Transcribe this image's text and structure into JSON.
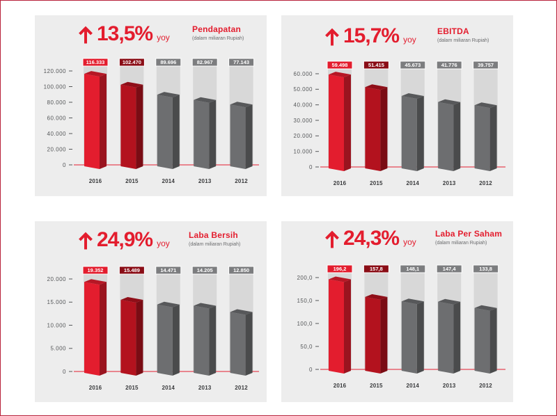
{
  "colors": {
    "accent": "#e31d2e",
    "frame": "#b8213a",
    "panel_background": "#ededed",
    "column_background": "#d8d8d8",
    "bar_colors": [
      "#e31d2e",
      "#b3121e",
      "#6d6e70",
      "#6d6e70",
      "#6d6e70"
    ],
    "label_colors": [
      "#e31d2e",
      "#8a0d16",
      "#7c7d7f",
      "#7c7d7f",
      "#7c7d7f"
    ]
  },
  "growth_icon": "up-arrow-icon",
  "chart_data": [
    {
      "type": "bar",
      "growth": "13,5%",
      "growth_period": "yoy",
      "title": "Pendapatan",
      "subtitle": "(dalam miliaran Rupiah)",
      "categories": [
        "2016",
        "2015",
        "2014",
        "2013",
        "2012"
      ],
      "values": [
        116333,
        102470,
        89696,
        82967,
        77143
      ],
      "data_labels": [
        "116.333",
        "102.470",
        "89.696",
        "82.967",
        "77.143"
      ],
      "ylim": [
        0,
        120000
      ],
      "yticks": [
        0,
        20000,
        40000,
        60000,
        80000,
        100000,
        120000
      ],
      "ytick_labels": [
        "0",
        "20.000",
        "40.000",
        "60.000",
        "80.000",
        "100.000",
        "120.000"
      ],
      "grid": false
    },
    {
      "type": "bar",
      "growth": "15,7%",
      "growth_period": "yoy",
      "title": "EBITDA",
      "subtitle": "(dalam miliaran Rupiah)",
      "categories": [
        "2016",
        "2015",
        "2014",
        "2013",
        "2012"
      ],
      "values": [
        59498,
        51415,
        45673,
        41776,
        39757
      ],
      "data_labels": [
        "59.498",
        "51.415",
        "45.673",
        "41.776",
        "39.757"
      ],
      "ylim": [
        0,
        60000
      ],
      "yticks": [
        0,
        10000,
        20000,
        30000,
        40000,
        50000,
        60000
      ],
      "ytick_labels": [
        "0",
        "10.000",
        "20.000",
        "30.000",
        "40.000",
        "50.000",
        "60.000"
      ],
      "grid": false
    },
    {
      "type": "bar",
      "growth": "24,9%",
      "growth_period": "yoy",
      "title": "Laba Bersih",
      "subtitle": "(dalam miliaran Rupiah)",
      "categories": [
        "2016",
        "2015",
        "2014",
        "2013",
        "2012"
      ],
      "values": [
        19352,
        15489,
        14471,
        14205,
        12850
      ],
      "data_labels": [
        "19.352",
        "15.489",
        "14.471",
        "14.205",
        "12.850"
      ],
      "ylim": [
        0,
        20000
      ],
      "yticks": [
        0,
        5000,
        10000,
        15000,
        20000
      ],
      "ytick_labels": [
        "0",
        "5.000",
        "10.000",
        "15.000",
        "20.000"
      ],
      "grid": false
    },
    {
      "type": "bar",
      "growth": "24,3%",
      "growth_period": "yoy",
      "title": "Laba Per Saham",
      "subtitle": "(dalam miliaran Rupiah)",
      "categories": [
        "2016",
        "2015",
        "2014",
        "2013",
        "2012"
      ],
      "values": [
        196.2,
        157.8,
        148.1,
        147.4,
        133.8
      ],
      "data_labels": [
        "196,2",
        "157,8",
        "148,1",
        "147,4",
        "133,8"
      ],
      "ylim": [
        0,
        200
      ],
      "yticks": [
        0,
        50,
        100,
        150,
        200
      ],
      "ytick_labels": [
        "0",
        "50,0",
        "100,0",
        "150,0",
        "200,0"
      ],
      "grid": false
    }
  ]
}
